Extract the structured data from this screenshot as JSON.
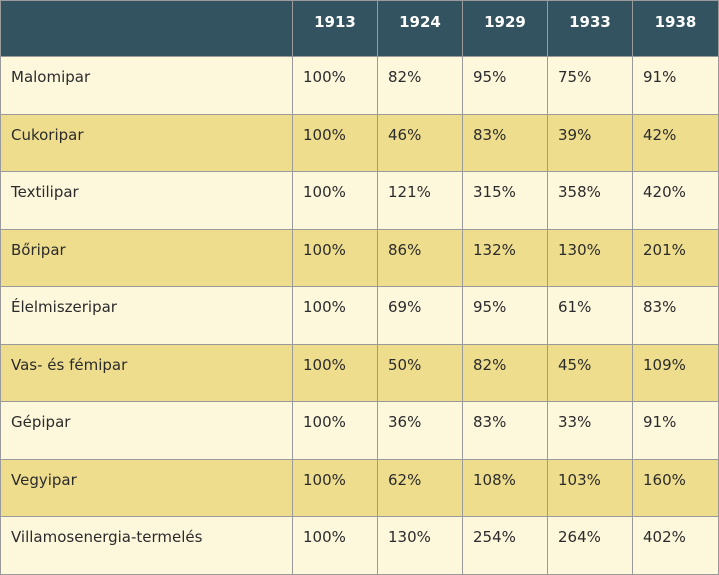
{
  "table": {
    "columns": [
      "",
      "1913",
      "1924",
      "1929",
      "1933",
      "1938"
    ],
    "rows": [
      {
        "label": "Malomipar",
        "values": [
          "100%",
          "82%",
          "95%",
          "75%",
          "91%"
        ]
      },
      {
        "label": "Cukoripar",
        "values": [
          "100%",
          "46%",
          "83%",
          "39%",
          "42%"
        ]
      },
      {
        "label": "Textilipar",
        "values": [
          "100%",
          "121%",
          "315%",
          "358%",
          "420%"
        ]
      },
      {
        "label": "Bőripar",
        "values": [
          "100%",
          "86%",
          "132%",
          "130%",
          "201%"
        ]
      },
      {
        "label": "Élelmiszeripar",
        "values": [
          "100%",
          "69%",
          "95%",
          "61%",
          "83%"
        ]
      },
      {
        "label": "Vas- és fémipar",
        "values": [
          "100%",
          "50%",
          "82%",
          "45%",
          "109%"
        ]
      },
      {
        "label": "Gépipar",
        "values": [
          "100%",
          "36%",
          "83%",
          "33%",
          "91%"
        ]
      },
      {
        "label": "Vegyipar",
        "values": [
          "100%",
          "62%",
          "108%",
          "103%",
          "160%"
        ]
      },
      {
        "label": "Villamosenergia-termelés",
        "values": [
          "100%",
          "130%",
          "254%",
          "264%",
          "402%"
        ]
      }
    ]
  },
  "colors": {
    "header_bg": "#32535f",
    "row_light": "#fdf7dc",
    "row_dark": "#eedd8d"
  }
}
